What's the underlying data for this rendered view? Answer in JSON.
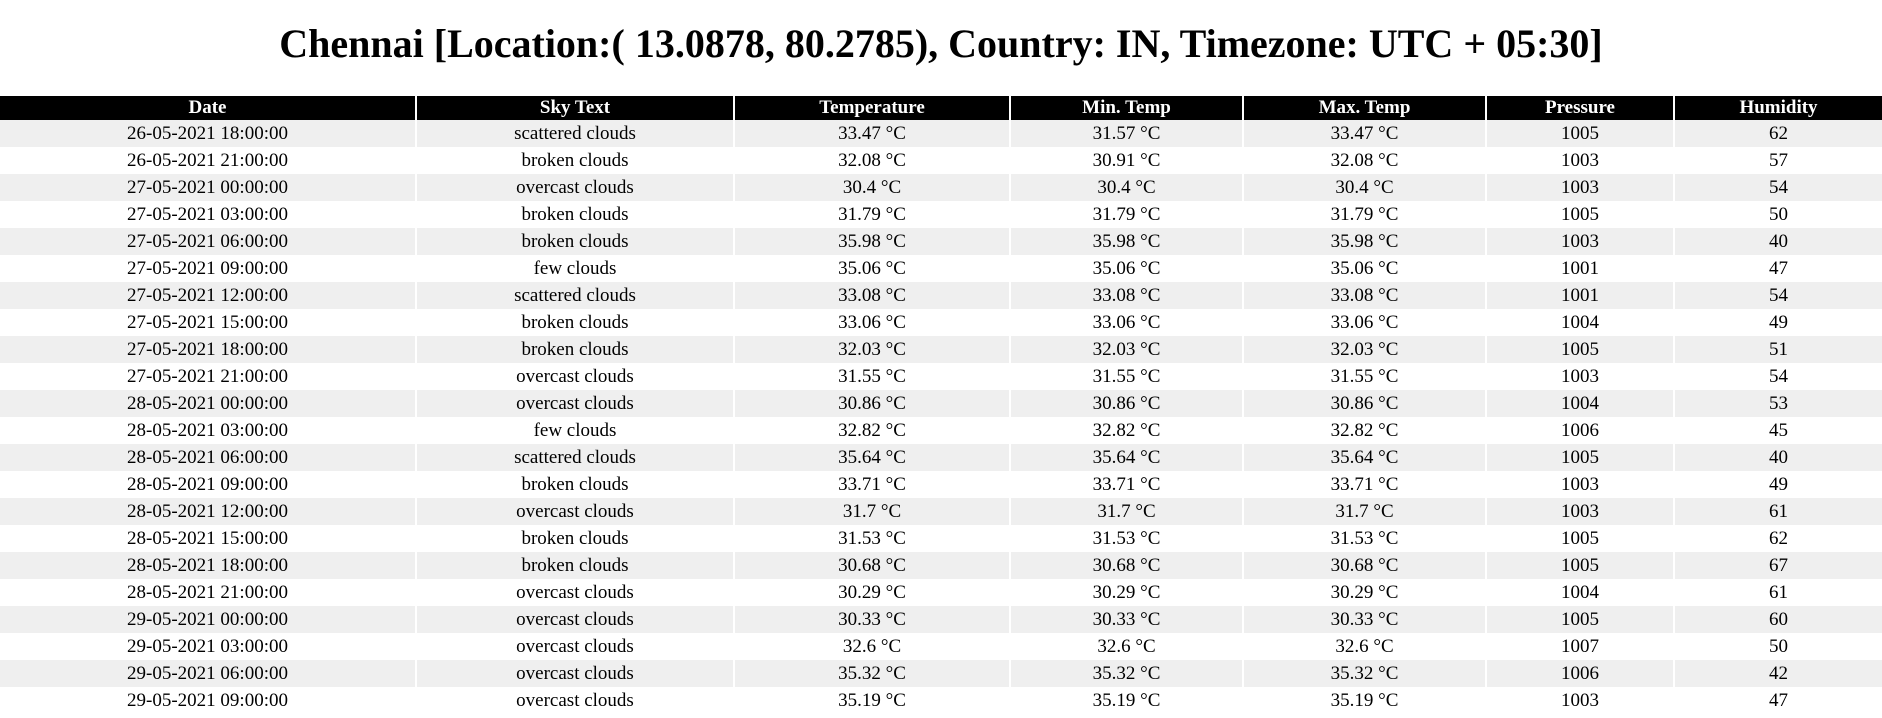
{
  "page": {
    "title": "Chennai [Location:( 13.0878, 80.2785), Country: IN, Timezone: UTC + 05:30]"
  },
  "table": {
    "headers": [
      "Date",
      "Sky Text",
      "Temperature",
      "Min. Temp",
      "Max. Temp",
      "Pressure",
      "Humidity"
    ],
    "rows": [
      [
        "26-05-2021 18:00:00",
        "scattered clouds",
        "33.47 °C",
        "31.57 °C",
        "33.47 °C",
        "1005",
        "62"
      ],
      [
        "26-05-2021 21:00:00",
        "broken clouds",
        "32.08 °C",
        "30.91 °C",
        "32.08 °C",
        "1003",
        "57"
      ],
      [
        "27-05-2021 00:00:00",
        "overcast clouds",
        "30.4 °C",
        "30.4 °C",
        "30.4 °C",
        "1003",
        "54"
      ],
      [
        "27-05-2021 03:00:00",
        "broken clouds",
        "31.79 °C",
        "31.79 °C",
        "31.79 °C",
        "1005",
        "50"
      ],
      [
        "27-05-2021 06:00:00",
        "broken clouds",
        "35.98 °C",
        "35.98 °C",
        "35.98 °C",
        "1003",
        "40"
      ],
      [
        "27-05-2021 09:00:00",
        "few clouds",
        "35.06 °C",
        "35.06 °C",
        "35.06 °C",
        "1001",
        "47"
      ],
      [
        "27-05-2021 12:00:00",
        "scattered clouds",
        "33.08 °C",
        "33.08 °C",
        "33.08 °C",
        "1001",
        "54"
      ],
      [
        "27-05-2021 15:00:00",
        "broken clouds",
        "33.06 °C",
        "33.06 °C",
        "33.06 °C",
        "1004",
        "49"
      ],
      [
        "27-05-2021 18:00:00",
        "broken clouds",
        "32.03 °C",
        "32.03 °C",
        "32.03 °C",
        "1005",
        "51"
      ],
      [
        "27-05-2021 21:00:00",
        "overcast clouds",
        "31.55 °C",
        "31.55 °C",
        "31.55 °C",
        "1003",
        "54"
      ],
      [
        "28-05-2021 00:00:00",
        "overcast clouds",
        "30.86 °C",
        "30.86 °C",
        "30.86 °C",
        "1004",
        "53"
      ],
      [
        "28-05-2021 03:00:00",
        "few clouds",
        "32.82 °C",
        "32.82 °C",
        "32.82 °C",
        "1006",
        "45"
      ],
      [
        "28-05-2021 06:00:00",
        "scattered clouds",
        "35.64 °C",
        "35.64 °C",
        "35.64 °C",
        "1005",
        "40"
      ],
      [
        "28-05-2021 09:00:00",
        "broken clouds",
        "33.71 °C",
        "33.71 °C",
        "33.71 °C",
        "1003",
        "49"
      ],
      [
        "28-05-2021 12:00:00",
        "overcast clouds",
        "31.7 °C",
        "31.7 °C",
        "31.7 °C",
        "1003",
        "61"
      ],
      [
        "28-05-2021 15:00:00",
        "broken clouds",
        "31.53 °C",
        "31.53 °C",
        "31.53 °C",
        "1005",
        "62"
      ],
      [
        "28-05-2021 18:00:00",
        "broken clouds",
        "30.68 °C",
        "30.68 °C",
        "30.68 °C",
        "1005",
        "67"
      ],
      [
        "28-05-2021 21:00:00",
        "overcast clouds",
        "30.29 °C",
        "30.29 °C",
        "30.29 °C",
        "1004",
        "61"
      ],
      [
        "29-05-2021 00:00:00",
        "overcast clouds",
        "30.33 °C",
        "30.33 °C",
        "30.33 °C",
        "1005",
        "60"
      ],
      [
        "29-05-2021 03:00:00",
        "overcast clouds",
        "32.6 °C",
        "32.6 °C",
        "32.6 °C",
        "1007",
        "50"
      ],
      [
        "29-05-2021 06:00:00",
        "overcast clouds",
        "35.32 °C",
        "35.32 °C",
        "35.32 °C",
        "1006",
        "42"
      ],
      [
        "29-05-2021 09:00:00",
        "overcast clouds",
        "35.19 °C",
        "35.19 °C",
        "35.19 °C",
        "1003",
        "47"
      ]
    ]
  },
  "colors": {
    "header_background": "#000000",
    "header_text": "#ffffff",
    "row_stripe": "#efefef",
    "row_plain": "#ffffff"
  }
}
